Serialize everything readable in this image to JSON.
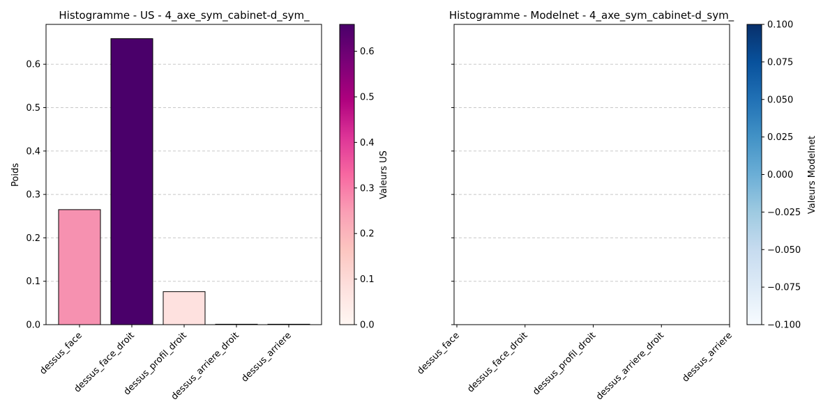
{
  "chart_data": [
    {
      "type": "bar",
      "title": "Histogramme - US - 4_axe_sym_cabinet-d_sym_",
      "xlabel": "",
      "ylabel": "Poids",
      "categories": [
        "dessus_face",
        "dessus_face_droit",
        "dessus_profil_droit",
        "dessus_arriere_droit",
        "dessus_arriere"
      ],
      "values": [
        0.265,
        0.659,
        0.076,
        0.0,
        0.0
      ],
      "ylim": [
        0,
        0.6918
      ],
      "yticks": [
        0.0,
        0.1,
        0.2,
        0.3,
        0.4,
        0.5,
        0.6
      ],
      "ytick_labels": [
        "0.0",
        "0.1",
        "0.2",
        "0.3",
        "0.4",
        "0.5",
        "0.6"
      ],
      "grid": "y-dashed",
      "bar_colors": [
        "#f691b0",
        "#4a006a",
        "#fee1df",
        "#fff7f3",
        "#fff7f3"
      ],
      "colorbar": {
        "label": "Valeurs US",
        "colormap": "RdPu",
        "range": [
          0.0,
          0.659
        ],
        "ticks": [
          0.0,
          0.1,
          0.2,
          0.3,
          0.4,
          0.5,
          0.6
        ],
        "tick_labels": [
          "0.0",
          "0.1",
          "0.2",
          "0.3",
          "0.4",
          "0.5",
          "0.6"
        ],
        "stops": [
          "#fff7f3",
          "#fde0dd",
          "#fcc5c0",
          "#fa9fb5",
          "#f768a1",
          "#dd3497",
          "#ae017e",
          "#7a0177",
          "#49006a"
        ]
      }
    },
    {
      "type": "bar",
      "title": "Histogramme - Modelnet - 4_axe_sym_cabinet-d_sym_",
      "xlabel": "",
      "ylabel": "",
      "categories": [
        "dessus_face",
        "dessus_face_droit",
        "dessus_profil_droit",
        "dessus_arriere_droit",
        "dessus_arriere"
      ],
      "values": [
        0,
        0,
        0,
        0,
        0
      ],
      "ylim": [
        0,
        0.6918
      ],
      "yticks": [
        0.0,
        0.1,
        0.2,
        0.3,
        0.4,
        0.5,
        0.6
      ],
      "ytick_labels": [],
      "grid": "y-dashed",
      "colorbar": {
        "label": "Valeurs Modelnet",
        "colormap": "Blues",
        "range": [
          -0.1,
          0.1
        ],
        "ticks": [
          -0.1,
          -0.075,
          -0.05,
          -0.025,
          0.0,
          0.025,
          0.05,
          0.075,
          0.1
        ],
        "tick_labels": [
          "−0.100",
          "−0.075",
          "−0.050",
          "−0.025",
          "0.000",
          "0.025",
          "0.050",
          "0.075",
          "0.100"
        ],
        "stops": [
          "#f7fbff",
          "#deebf7",
          "#c6dbef",
          "#9ecae1",
          "#6baed6",
          "#4292c6",
          "#2171b5",
          "#08519c",
          "#08306b"
        ]
      }
    }
  ]
}
